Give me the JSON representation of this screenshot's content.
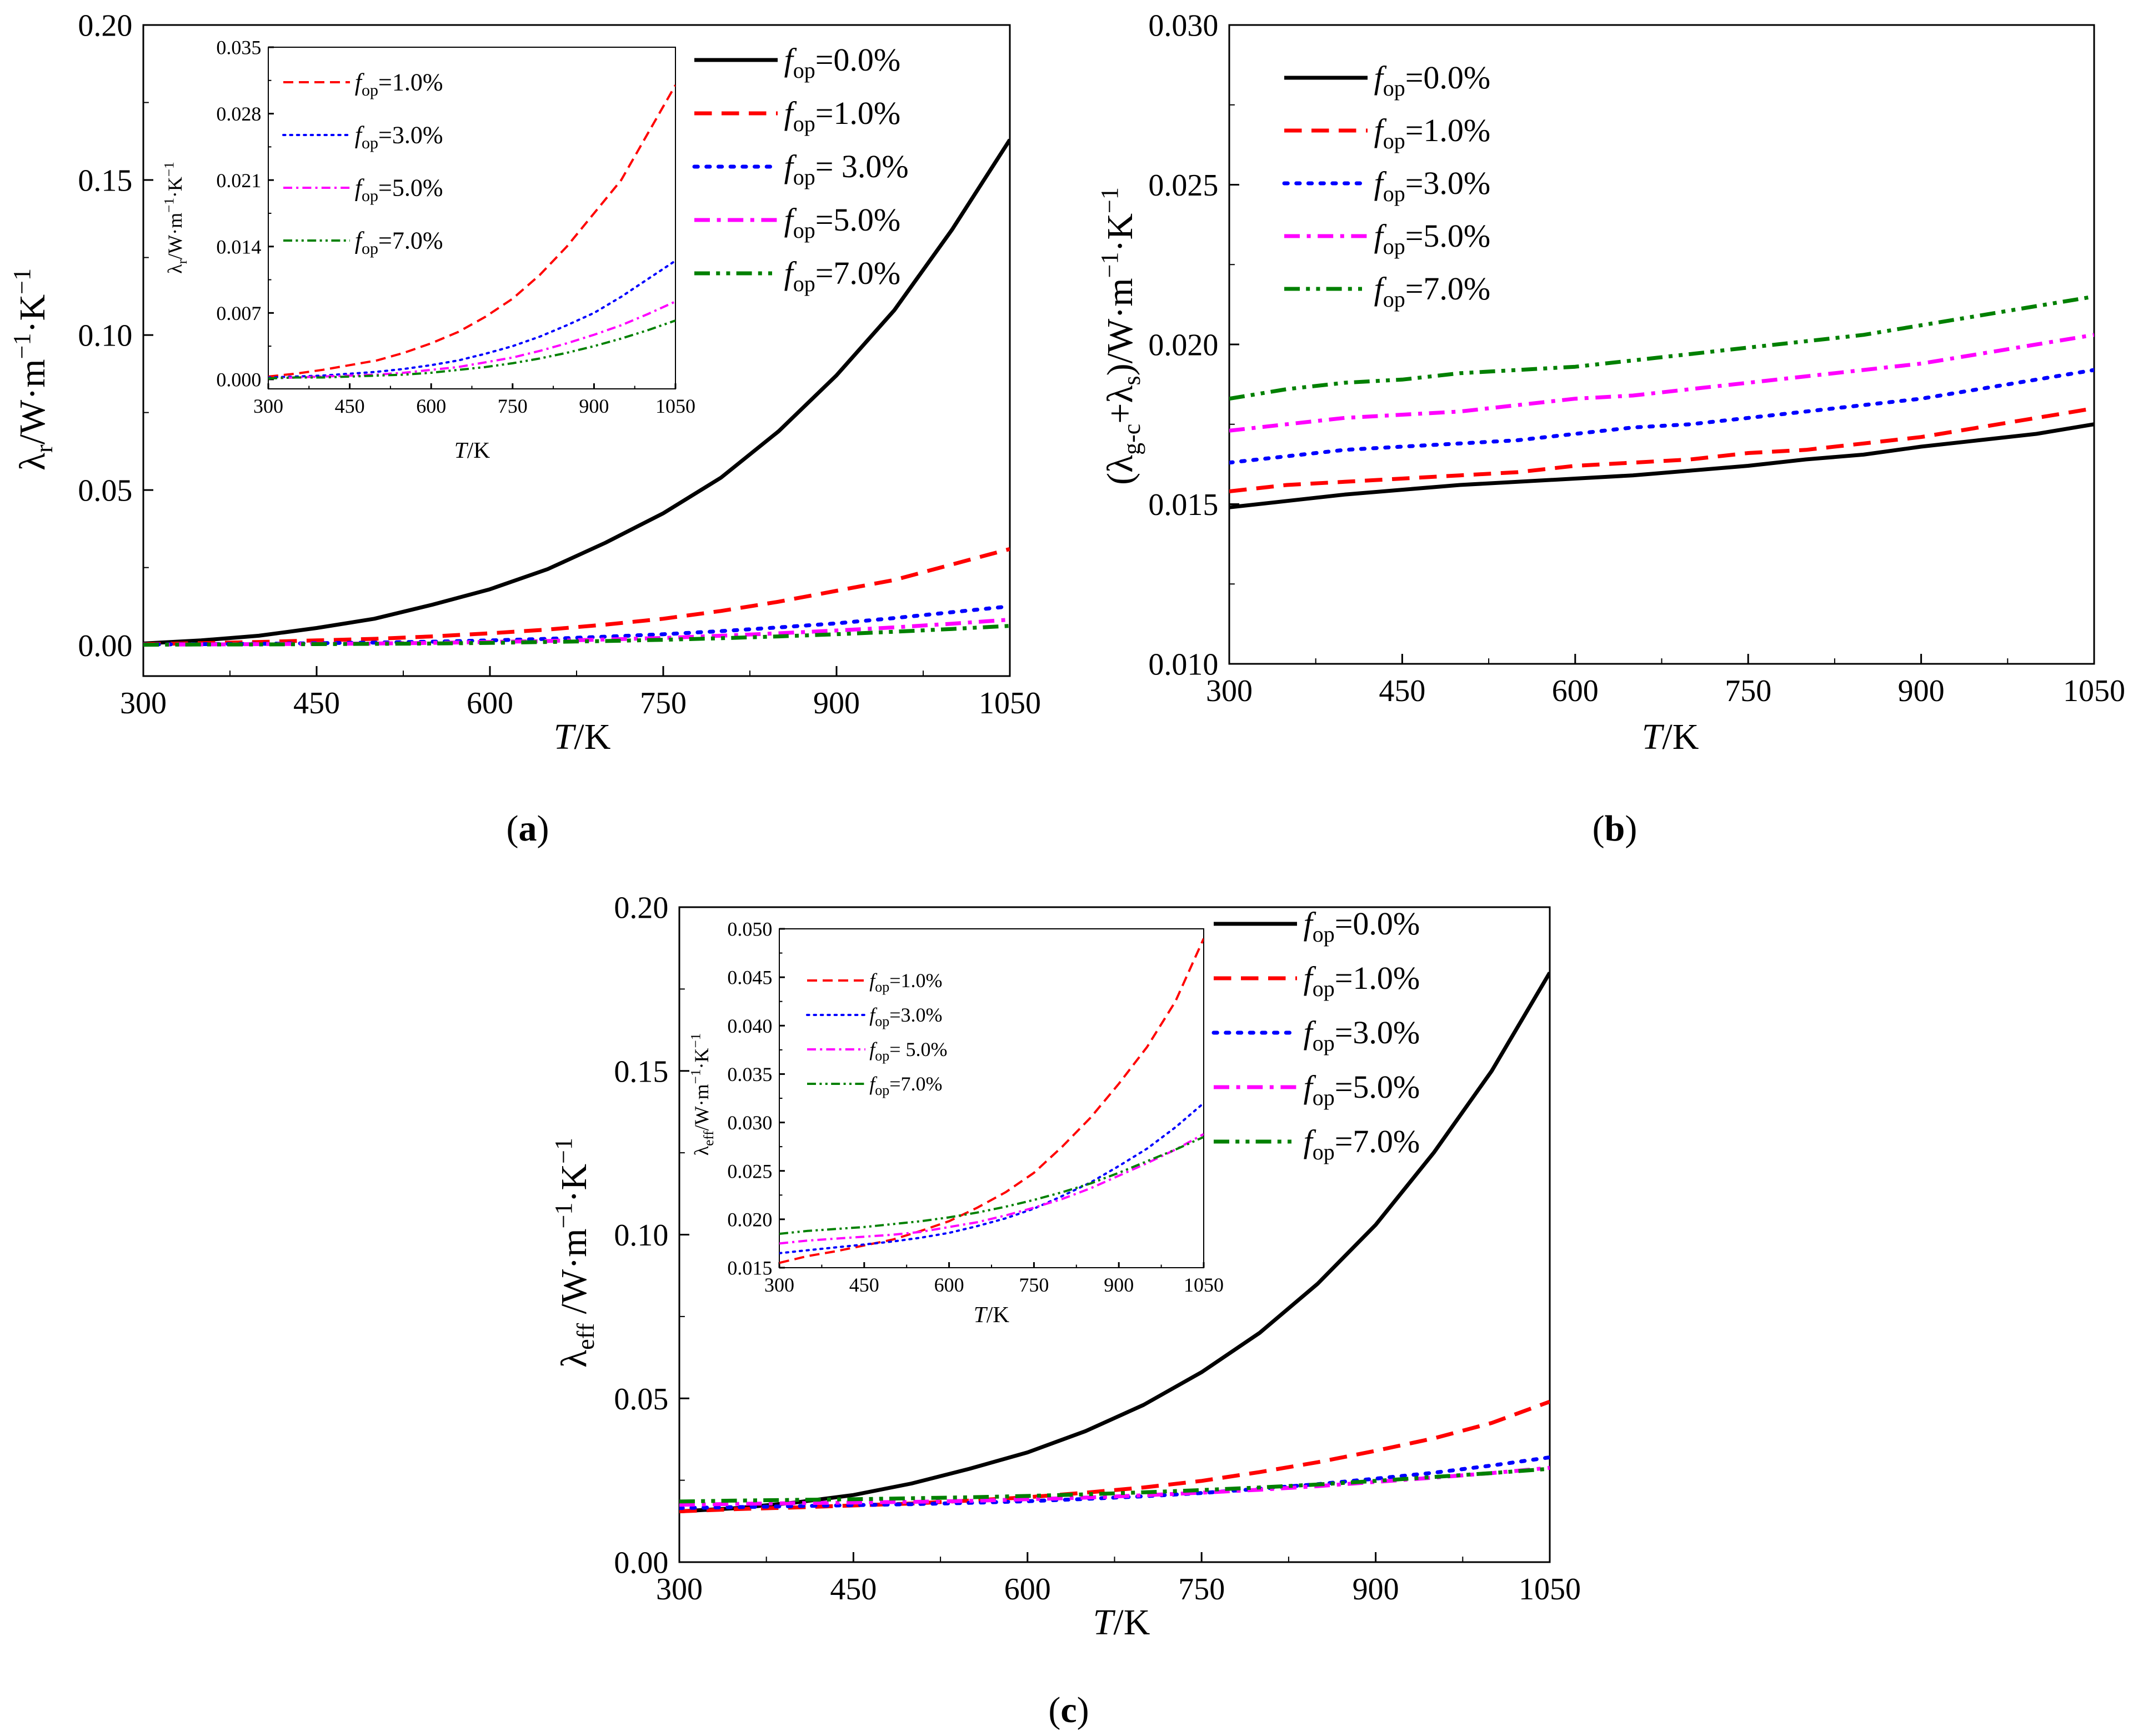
{
  "colors": {
    "f0": "#000000",
    "f1": "#ff0000",
    "f3": "#0000ff",
    "f5": "#ff00ff",
    "f7": "#008000"
  },
  "chart_data": [
    {
      "id": "a",
      "type": "line",
      "panel_label": "(a)",
      "xlabel": "T/K",
      "ylabel": "λr/W·m⁻¹·K⁻¹",
      "xlim": [
        300,
        1050
      ],
      "ylim": [
        -0.01,
        0.2
      ],
      "xticks": [
        "300",
        "450",
        "600",
        "750",
        "900",
        "1050"
      ],
      "yticks": [
        "0.00",
        "0.05",
        "0.10",
        "0.15",
        "0.20"
      ],
      "x": [
        300,
        350,
        400,
        450,
        500,
        550,
        600,
        650,
        700,
        750,
        800,
        850,
        900,
        950,
        1000,
        1050
      ],
      "series": [
        {
          "key": "f0",
          "name": "fop=0.0%",
          "legend_value": "=0.0%",
          "values": [
            0.0005,
            0.0015,
            0.003,
            0.0055,
            0.0085,
            0.013,
            0.018,
            0.0245,
            0.033,
            0.0425,
            0.054,
            0.069,
            0.087,
            0.108,
            0.134,
            0.163
          ]
        },
        {
          "key": "f1",
          "name": "fop=1.0%",
          "legend_value": "=1.0%",
          "values": [
            0.0003,
            0.0006,
            0.001,
            0.0015,
            0.002,
            0.0028,
            0.0038,
            0.005,
            0.0066,
            0.0085,
            0.011,
            0.014,
            0.0175,
            0.021,
            0.026,
            0.031
          ]
        },
        {
          "key": "f3",
          "name": "fop= 3.0%",
          "legend_value": "= 3.0%",
          "values": [
            0.0002,
            0.0003,
            0.0004,
            0.0006,
            0.0008,
            0.0011,
            0.0015,
            0.002,
            0.0027,
            0.0035,
            0.0045,
            0.0057,
            0.007,
            0.0087,
            0.0106,
            0.0125
          ]
        },
        {
          "key": "f5",
          "name": "fop=5.0%",
          "legend_value": "=5.0%",
          "values": [
            0.0001,
            0.0002,
            0.0003,
            0.0004,
            0.0005,
            0.0007,
            0.001,
            0.0013,
            0.0018,
            0.0023,
            0.003,
            0.0038,
            0.0047,
            0.0057,
            0.0069,
            0.0082
          ]
        },
        {
          "key": "f7",
          "name": "fop=7.0%",
          "legend_value": "=7.0%",
          "values": [
            0.0001,
            0.0002,
            0.0002,
            0.0003,
            0.0004,
            0.0005,
            0.0007,
            0.001,
            0.0013,
            0.0017,
            0.0022,
            0.0028,
            0.0035,
            0.0043,
            0.0052,
            0.0062
          ]
        }
      ],
      "inset": {
        "xlabel": "T/K",
        "ylabel": "λr/W·m⁻¹·K⁻¹",
        "xlim": [
          300,
          1050
        ],
        "ylim": [
          -0.001,
          0.035
        ],
        "xticks": [
          "300",
          "450",
          "600",
          "750",
          "900",
          "1050"
        ],
        "yticks": [
          "0.000",
          "0.007",
          "0.014",
          "0.021",
          "0.028",
          "0.035"
        ],
        "series_keys": [
          "f1",
          "f3",
          "f5",
          "f7"
        ],
        "legend": [
          {
            "key": "f1",
            "legend_value": "=1.0%"
          },
          {
            "key": "f3",
            "legend_value": "=3.0%"
          },
          {
            "key": "f5",
            "legend_value": "=5.0%"
          },
          {
            "key": "f7",
            "legend_value": "=7.0%"
          }
        ]
      }
    },
    {
      "id": "b",
      "type": "line",
      "panel_label": "(b)",
      "xlabel": "T/K",
      "ylabel": "(λg-c+λs)/W·m⁻¹·K⁻¹",
      "xlim": [
        300,
        1050
      ],
      "ylim": [
        0.01,
        0.03
      ],
      "xticks": [
        "300",
        "450",
        "600",
        "750",
        "900",
        "1050"
      ],
      "yticks": [
        "0.010",
        "0.015",
        "0.020",
        "0.025",
        "0.030"
      ],
      "x": [
        300,
        350,
        400,
        450,
        500,
        550,
        600,
        650,
        700,
        750,
        800,
        850,
        900,
        950,
        1000,
        1050
      ],
      "series": [
        {
          "key": "f0",
          "name": "fop=0.0%",
          "legend_value": "=0.0%",
          "values": [
            0.0149,
            0.0151,
            0.0153,
            0.01545,
            0.0156,
            0.0157,
            0.0158,
            0.0159,
            0.01605,
            0.0162,
            0.0164,
            0.01655,
            0.0168,
            0.017,
            0.0172,
            0.0175
          ]
        },
        {
          "key": "f1",
          "name": "fop=1.0%",
          "legend_value": "=1.0%",
          "values": [
            0.0154,
            0.0156,
            0.0157,
            0.0158,
            0.0159,
            0.016,
            0.0162,
            0.0163,
            0.0164,
            0.0166,
            0.0167,
            0.0169,
            0.0171,
            0.0174,
            0.0177,
            0.018
          ]
        },
        {
          "key": "f3",
          "name": "fop=3.0%",
          "legend_value": "=3.0%",
          "values": [
            0.0163,
            0.0165,
            0.0167,
            0.0168,
            0.0169,
            0.017,
            0.0172,
            0.0174,
            0.0175,
            0.0177,
            0.0179,
            0.0181,
            0.0183,
            0.0186,
            0.0189,
            0.0192
          ]
        },
        {
          "key": "f5",
          "name": "fop=5.0%",
          "legend_value": "=5.0%",
          "values": [
            0.0173,
            0.0175,
            0.0177,
            0.0178,
            0.0179,
            0.0181,
            0.0183,
            0.0184,
            0.0186,
            0.0188,
            0.019,
            0.0192,
            0.0194,
            0.0197,
            0.02,
            0.0203
          ]
        },
        {
          "key": "f7",
          "name": "fop=7.0%",
          "legend_value": "=7.0%",
          "values": [
            0.0183,
            0.0186,
            0.0188,
            0.0189,
            0.0191,
            0.0192,
            0.0193,
            0.0195,
            0.0197,
            0.0199,
            0.0201,
            0.0203,
            0.0206,
            0.0209,
            0.0212,
            0.0215
          ]
        }
      ]
    },
    {
      "id": "c",
      "type": "line",
      "panel_label": "(c)",
      "xlabel": "T/K",
      "ylabel": "λeff /W·m⁻¹·K⁻¹",
      "xlim": [
        300,
        1050
      ],
      "ylim": [
        0.0,
        0.2
      ],
      "xticks": [
        "300",
        "450",
        "600",
        "750",
        "900",
        "1050"
      ],
      "yticks": [
        "0.00",
        "0.05",
        "0.10",
        "0.15",
        "0.20"
      ],
      "x": [
        300,
        350,
        400,
        450,
        500,
        550,
        600,
        650,
        700,
        750,
        800,
        850,
        900,
        950,
        1000,
        1050
      ],
      "series": [
        {
          "key": "f0",
          "name": "fop=0.0%",
          "legend_value": "=0.0%",
          "values": [
            0.0155,
            0.0165,
            0.0182,
            0.0205,
            0.024,
            0.0285,
            0.0335,
            0.04,
            0.048,
            0.058,
            0.07,
            0.085,
            0.103,
            0.125,
            0.15,
            0.18
          ]
        },
        {
          "key": "f1",
          "name": "fop=1.0%",
          "legend_value": "=1.0%",
          "values": [
            0.0155,
            0.0162,
            0.0167,
            0.0173,
            0.0179,
            0.0188,
            0.0198,
            0.0212,
            0.0228,
            0.0248,
            0.0275,
            0.0305,
            0.034,
            0.0378,
            0.0425,
            0.049
          ]
        },
        {
          "key": "f3",
          "name": "fop=3.0%",
          "legend_value": "=3.0%",
          "values": [
            0.0165,
            0.0168,
            0.0171,
            0.0174,
            0.0177,
            0.0181,
            0.0186,
            0.0193,
            0.0201,
            0.0211,
            0.0224,
            0.0238,
            0.0255,
            0.0273,
            0.0295,
            0.032
          ]
        },
        {
          "key": "f5",
          "name": "fop=5.0%",
          "legend_value": "=5.0%",
          "values": [
            0.0175,
            0.0178,
            0.018,
            0.0182,
            0.0184,
            0.0187,
            0.0192,
            0.0197,
            0.0204,
            0.0212,
            0.0221,
            0.0232,
            0.0245,
            0.0258,
            0.0272,
            0.0288
          ]
        },
        {
          "key": "f7",
          "name": "fop=7.0%",
          "legend_value": "=7.0%",
          "values": [
            0.0185,
            0.0188,
            0.019,
            0.0192,
            0.0195,
            0.0198,
            0.0202,
            0.0207,
            0.0213,
            0.022,
            0.0228,
            0.0237,
            0.0248,
            0.026,
            0.0272,
            0.0285
          ]
        }
      ],
      "inset": {
        "xlabel": "T/K",
        "ylabel": "λeff/W·m⁻¹·K⁻¹",
        "xlim": [
          300,
          1050
        ],
        "ylim": [
          0.015,
          0.05
        ],
        "xticks": [
          "300",
          "450",
          "600",
          "750",
          "900",
          "1050"
        ],
        "yticks": [
          "0.015",
          "0.020",
          "0.025",
          "0.030",
          "0.035",
          "0.040",
          "0.045",
          "0.050"
        ],
        "series_keys": [
          "f1",
          "f3",
          "f5",
          "f7"
        ],
        "legend": [
          {
            "key": "f1",
            "legend_value": "=1.0%"
          },
          {
            "key": "f3",
            "legend_value": "=3.0%"
          },
          {
            "key": "f5",
            "legend_value": "= 5.0%"
          },
          {
            "key": "f7",
            "legend_value": "=7.0%"
          }
        ]
      }
    }
  ]
}
